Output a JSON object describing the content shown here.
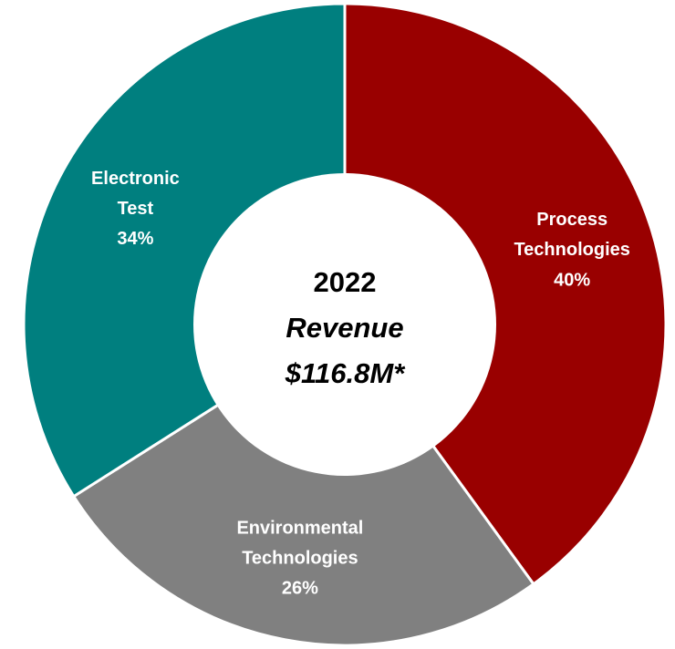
{
  "chart_data": {
    "type": "pie",
    "categories": [
      "Process Technologies",
      "Environmental Technologies",
      "Electronic Test"
    ],
    "values": [
      40,
      26,
      34
    ],
    "value_labels": [
      "40%",
      "26%",
      "34%"
    ],
    "colors": [
      "#990000",
      "#808080",
      "#007f7f"
    ],
    "center_labels": [
      "2022",
      "Revenue",
      "$116.8M*"
    ]
  }
}
